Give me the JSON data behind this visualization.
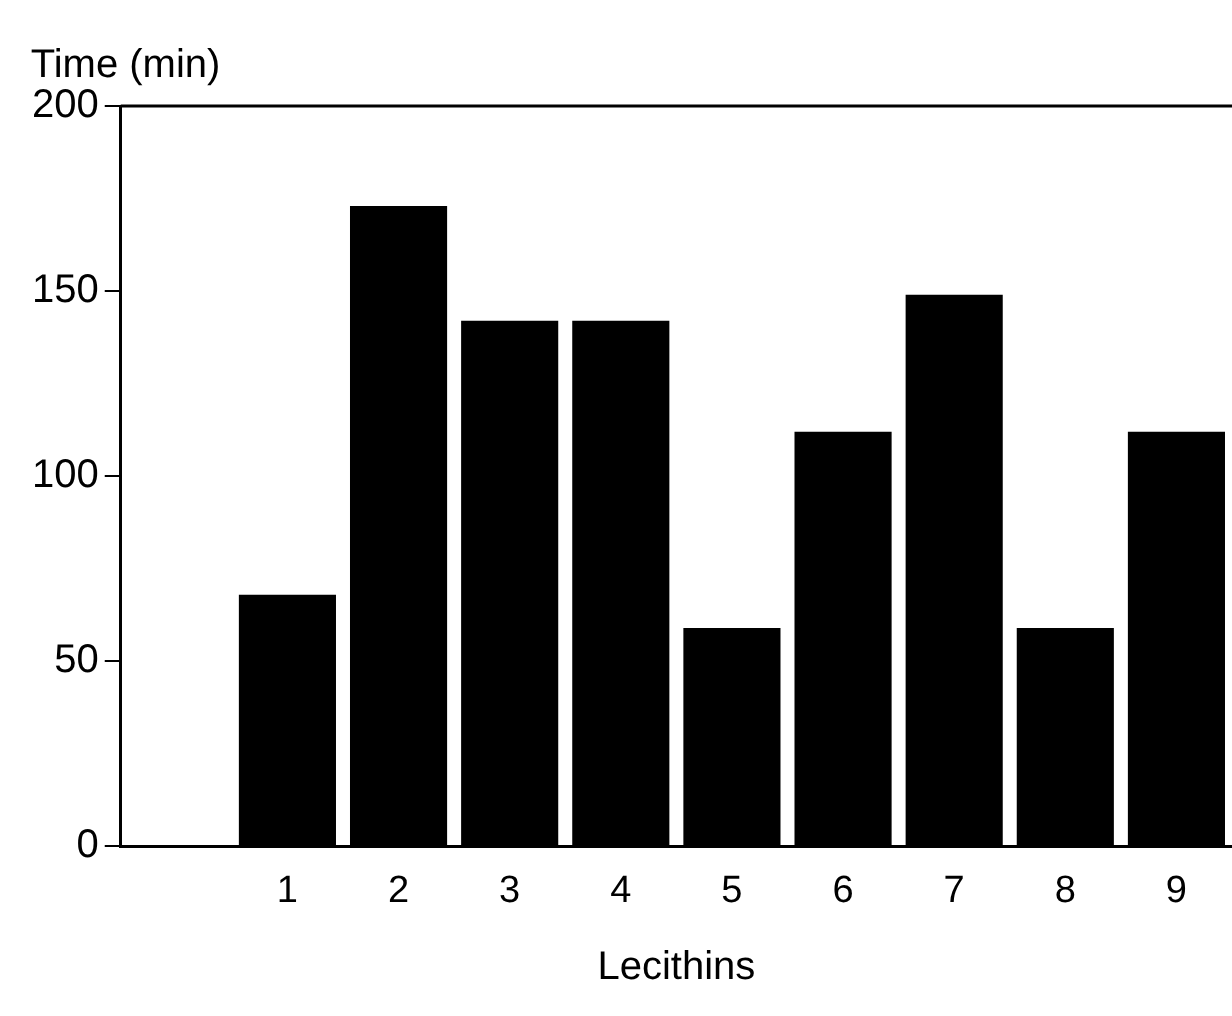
{
  "chart_data": {
    "type": "bar",
    "ylabel": "Time (min)",
    "xlabel": "Lecithins",
    "categories": [
      null,
      "1",
      "2",
      "3",
      "4",
      "5",
      "6",
      "7",
      "8",
      "9"
    ],
    "values": [
      null,
      68,
      173,
      142,
      142,
      59,
      112,
      149,
      59,
      112
    ],
    "color": "#000000",
    "ylim": [
      0,
      200
    ],
    "yticks": [
      0,
      50,
      100,
      150,
      200
    ],
    "grid": false,
    "legend": false
  }
}
